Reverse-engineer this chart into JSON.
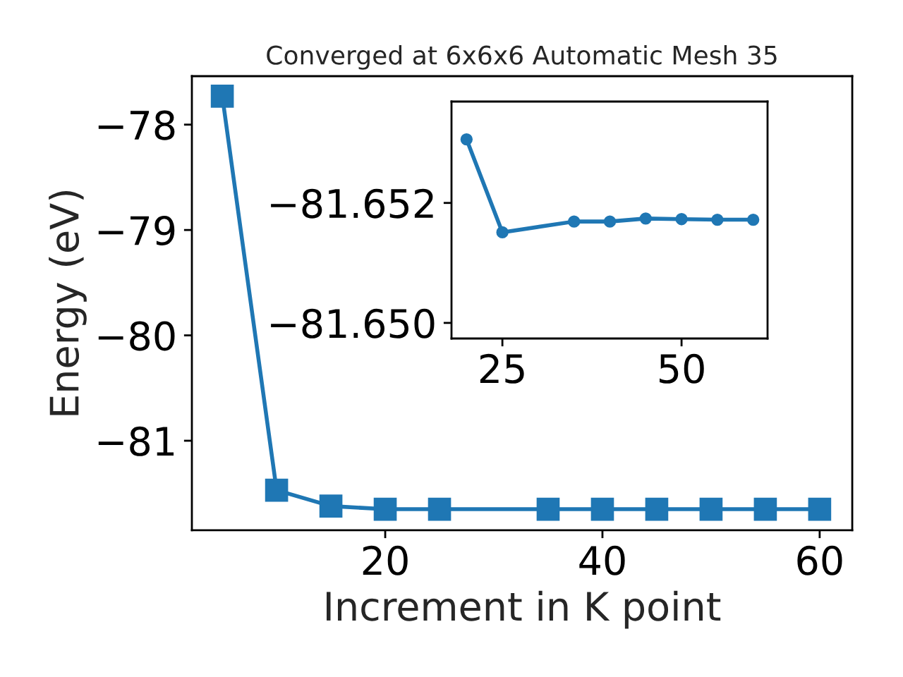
{
  "chart_data": [
    {
      "type": "line",
      "title": "Converged at 6x6x6 Automatic Mesh 35",
      "xlabel": "Increment in K point",
      "ylabel": "Energy (eV)",
      "x": [
        5,
        10,
        15,
        20,
        25,
        35,
        40,
        45,
        50,
        55,
        60
      ],
      "series": [
        {
          "color": "#1f77b4",
          "values": [
            -77.73,
            -81.47,
            -81.62,
            -81.65,
            -81.65,
            -81.65,
            -81.65,
            -81.65,
            -81.65,
            -81.65,
            -81.65
          ]
        }
      ],
      "marker": "square",
      "line_style": "solid",
      "grid": false,
      "legend": false,
      "xlim": [
        2.2,
        63.0
      ],
      "xticks": [
        20,
        40,
        60
      ],
      "ylim": [
        -81.85,
        -77.54
      ],
      "yticks": [
        {
          "value": -78,
          "label": "−78"
        },
        {
          "value": -79,
          "label": "−79"
        },
        {
          "value": -80,
          "label": "−80"
        },
        {
          "value": -81,
          "label": "−81"
        }
      ]
    },
    {
      "type": "line",
      "x": [
        20,
        25,
        35,
        40,
        45,
        50,
        55,
        60
      ],
      "series": [
        {
          "color": "#1f77b4",
          "values": [
            -81.65306,
            -81.65151,
            -81.65169,
            -81.65169,
            -81.65174,
            -81.65173,
            -81.65172,
            -81.65172
          ]
        }
      ],
      "marker": "circle",
      "line_style": "solid",
      "grid": false,
      "legend": false,
      "xlim": [
        17.9,
        62.0
      ],
      "xticks": [
        25,
        50
      ],
      "ylim": [
        -81.64974,
        -81.65369
      ],
      "yticks": [
        {
          "value": -81.652,
          "label": "−81.652"
        },
        {
          "value": -81.65,
          "label": "−81.650"
        }
      ]
    }
  ]
}
